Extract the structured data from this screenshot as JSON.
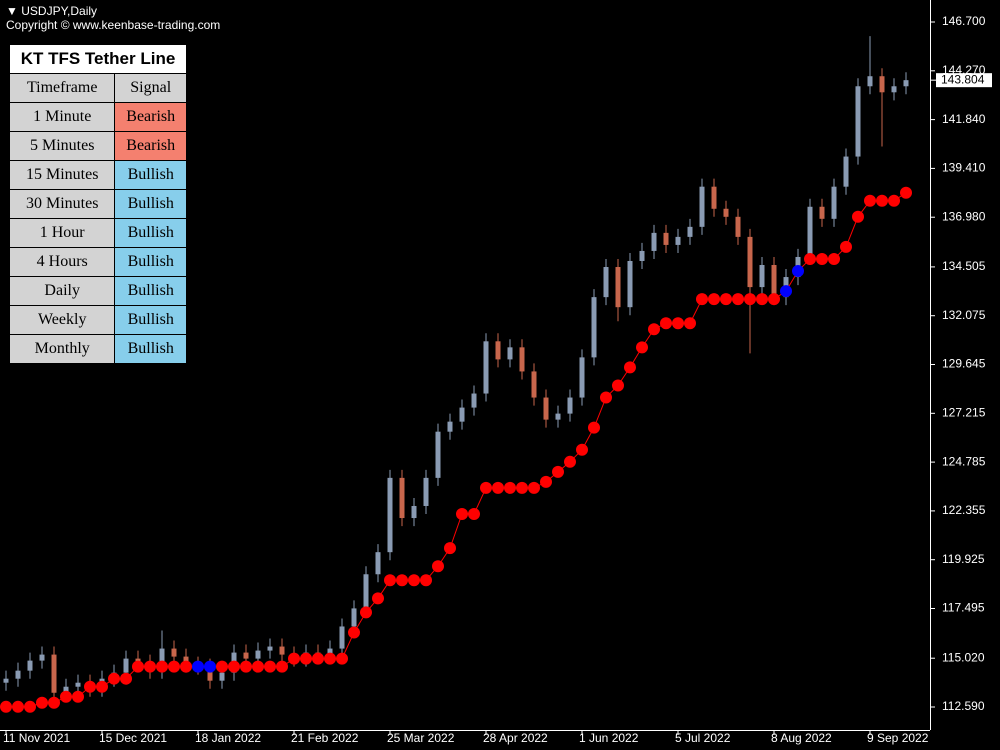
{
  "header": {
    "symbol": "USDJPY,Daily",
    "copyright": "Copyright © www.keenbase-trading.com"
  },
  "table": {
    "title": "KT TFS Tether Line",
    "columns": [
      "Timeframe",
      "Signal"
    ],
    "rows": [
      [
        "1 Minute",
        "Bearish"
      ],
      [
        "5 Minutes",
        "Bearish"
      ],
      [
        "15 Minutes",
        "Bullish"
      ],
      [
        "30 Minutes",
        "Bullish"
      ],
      [
        "1 Hour",
        "Bullish"
      ],
      [
        "4 Hours",
        "Bullish"
      ],
      [
        "Daily",
        "Bullish"
      ],
      [
        "Weekly",
        "Bullish"
      ],
      [
        "Monthly",
        "Bullish"
      ]
    ],
    "bearish_color": "#f4806f",
    "bullish_color": "#87ceeb"
  },
  "chart_data": {
    "type": "candlestick",
    "categories": [
      "11 Nov 2021",
      null,
      null,
      null,
      null,
      null,
      null,
      null,
      "15 Dec 2021",
      null,
      null,
      null,
      null,
      null,
      null,
      null,
      "18 Jan 2022",
      null,
      null,
      null,
      null,
      null,
      null,
      null,
      "21 Feb 2022",
      null,
      null,
      null,
      null,
      null,
      null,
      null,
      "25 Mar 2022",
      null,
      null,
      null,
      null,
      null,
      null,
      null,
      "28 Apr 2022",
      null,
      null,
      null,
      null,
      null,
      null,
      null,
      "1 Jun 2022",
      null,
      null,
      null,
      null,
      null,
      null,
      null,
      "5 Jul 2022",
      null,
      null,
      null,
      null,
      null,
      null,
      null,
      "8 Aug 2022",
      null,
      null,
      null,
      null,
      null,
      null,
      null,
      "9 Sep 2022",
      null,
      null,
      null
    ],
    "open": [
      113.8,
      114.0,
      114.4,
      114.9,
      115.2,
      113.3,
      113.6,
      113.8,
      113.5,
      114.0,
      114.3,
      115.0,
      114.8,
      114.4,
      115.5,
      115.1,
      114.7,
      114.6,
      113.9,
      114.3,
      115.3,
      115.0,
      115.4,
      115.6,
      115.2,
      115.0,
      115.3,
      115.2,
      115.5,
      116.6,
      117.5,
      119.2,
      120.3,
      124.0,
      122.0,
      122.6,
      124.0,
      126.3,
      126.8,
      127.5,
      128.2,
      130.8,
      129.9,
      130.5,
      129.3,
      128.0,
      126.9,
      127.2,
      128.0,
      130.0,
      133.0,
      134.5,
      132.5,
      134.8,
      135.3,
      136.2,
      135.6,
      136.0,
      136.5,
      138.5,
      137.4,
      137.0,
      136.0,
      133.5,
      134.6,
      133.0,
      134.0,
      135.0,
      137.5,
      136.9,
      138.5,
      140.0,
      143.5,
      144.0,
      143.2,
      143.5
    ],
    "high": [
      114.4,
      114.8,
      115.3,
      115.6,
      115.6,
      114.0,
      114.2,
      114.2,
      114.4,
      114.7,
      115.4,
      115.4,
      115.2,
      116.4,
      115.9,
      115.5,
      115.1,
      115.0,
      114.7,
      115.7,
      115.7,
      115.8,
      116.0,
      116.0,
      115.6,
      115.7,
      115.7,
      115.9,
      117.0,
      117.9,
      119.6,
      120.7,
      124.4,
      124.4,
      123.0,
      124.4,
      126.7,
      127.2,
      127.9,
      128.6,
      131.2,
      131.2,
      130.9,
      130.9,
      129.7,
      128.4,
      127.6,
      128.4,
      130.4,
      133.4,
      134.9,
      134.9,
      135.2,
      135.7,
      136.6,
      136.6,
      136.4,
      136.9,
      138.9,
      138.9,
      137.8,
      137.4,
      136.4,
      135.0,
      135.0,
      134.4,
      135.4,
      137.9,
      137.9,
      138.9,
      140.4,
      143.9,
      146.0,
      144.4,
      143.9,
      144.2
    ],
    "low": [
      113.4,
      113.6,
      114.0,
      114.5,
      112.9,
      112.9,
      113.2,
      113.1,
      113.1,
      113.6,
      113.9,
      114.4,
      114.0,
      114.0,
      114.7,
      114.3,
      114.2,
      113.5,
      113.5,
      113.9,
      114.6,
      114.6,
      115.0,
      114.8,
      114.6,
      114.6,
      114.8,
      114.8,
      115.1,
      116.2,
      117.1,
      118.8,
      119.9,
      121.6,
      121.6,
      122.2,
      123.6,
      125.9,
      126.4,
      127.1,
      127.8,
      129.5,
      129.5,
      128.9,
      127.6,
      126.5,
      126.5,
      126.8,
      127.6,
      129.6,
      132.6,
      131.8,
      132.1,
      134.4,
      134.9,
      135.2,
      135.2,
      135.6,
      136.1,
      137.0,
      136.6,
      135.6,
      130.2,
      133.1,
      132.6,
      132.6,
      133.6,
      134.6,
      136.5,
      136.5,
      138.1,
      139.6,
      143.1,
      140.5,
      142.8,
      143.1
    ],
    "close": [
      114.0,
      114.4,
      114.9,
      115.2,
      113.3,
      113.6,
      113.8,
      113.5,
      114.0,
      114.3,
      115.0,
      114.8,
      114.4,
      115.5,
      115.1,
      114.7,
      114.6,
      113.9,
      114.3,
      115.3,
      115.0,
      115.4,
      115.6,
      115.2,
      115.0,
      115.3,
      115.2,
      115.5,
      116.6,
      117.5,
      119.2,
      120.3,
      124.0,
      122.0,
      122.6,
      124.0,
      126.3,
      126.8,
      127.5,
      128.2,
      130.8,
      129.9,
      130.5,
      129.3,
      128.0,
      126.9,
      127.2,
      128.0,
      130.0,
      133.0,
      134.5,
      132.5,
      134.8,
      135.3,
      136.2,
      135.6,
      136.0,
      136.5,
      138.5,
      137.4,
      137.0,
      136.0,
      133.5,
      134.6,
      133.0,
      134.0,
      135.0,
      137.5,
      136.9,
      138.5,
      140.0,
      143.5,
      144.0,
      143.2,
      143.5,
      143.804
    ],
    "up_color": "#8a9bb3",
    "down_color": "#c8664c",
    "tether": {
      "values": [
        112.6,
        112.6,
        112.6,
        112.8,
        112.8,
        113.1,
        113.1,
        113.6,
        113.6,
        114.0,
        114.0,
        114.6,
        114.6,
        114.6,
        114.6,
        114.6,
        114.6,
        114.6,
        114.6,
        114.6,
        114.6,
        114.6,
        114.6,
        114.6,
        115.0,
        115.0,
        115.0,
        115.0,
        115.0,
        116.3,
        117.3,
        118.0,
        118.9,
        118.9,
        118.9,
        118.9,
        119.6,
        120.5,
        122.2,
        122.2,
        123.5,
        123.5,
        123.5,
        123.5,
        123.5,
        123.8,
        124.3,
        124.8,
        125.4,
        126.5,
        128.0,
        128.6,
        129.5,
        130.5,
        131.4,
        131.7,
        131.7,
        131.7,
        132.9,
        132.9,
        132.9,
        132.9,
        132.9,
        132.9,
        132.9,
        133.3,
        134.3,
        134.9,
        134.9,
        134.9,
        135.5,
        137.0,
        137.8,
        137.8,
        137.8,
        138.2
      ],
      "point_colors": [
        "#ff0000",
        "#ff0000",
        "#ff0000",
        "#ff0000",
        "#ff0000",
        "#ff0000",
        "#ff0000",
        "#ff0000",
        "#ff0000",
        "#ff0000",
        "#ff0000",
        "#ff0000",
        "#ff0000",
        "#ff0000",
        "#ff0000",
        "#ff0000",
        "#0000ff",
        "#0000ff",
        "#ff0000",
        "#ff0000",
        "#ff0000",
        "#ff0000",
        "#ff0000",
        "#ff0000",
        "#ff0000",
        "#ff0000",
        "#ff0000",
        "#ff0000",
        "#ff0000",
        "#ff0000",
        "#ff0000",
        "#ff0000",
        "#ff0000",
        "#ff0000",
        "#ff0000",
        "#ff0000",
        "#ff0000",
        "#ff0000",
        "#ff0000",
        "#ff0000",
        "#ff0000",
        "#ff0000",
        "#ff0000",
        "#ff0000",
        "#ff0000",
        "#ff0000",
        "#ff0000",
        "#ff0000",
        "#ff0000",
        "#ff0000",
        "#ff0000",
        "#ff0000",
        "#ff0000",
        "#ff0000",
        "#ff0000",
        "#ff0000",
        "#ff0000",
        "#ff0000",
        "#ff0000",
        "#ff0000",
        "#ff0000",
        "#ff0000",
        "#ff0000",
        "#ff0000",
        "#ff0000",
        "#0000ff",
        "#0000ff",
        "#ff0000",
        "#ff0000",
        "#ff0000",
        "#ff0000",
        "#ff0000",
        "#ff0000",
        "#ff0000",
        "#ff0000",
        "#ff0000"
      ]
    },
    "last_price": 143.804,
    "ylim": [
      111.445,
      147.796
    ],
    "yticks": [
      {
        "value": 146.7,
        "label": "146.700"
      },
      {
        "value": 144.27,
        "label": "144.270"
      },
      {
        "value": 141.84,
        "label": "141.840"
      },
      {
        "value": 139.41,
        "label": "139.410"
      },
      {
        "value": 136.98,
        "label": "136.980"
      },
      134.505,
      132.075,
      129.645,
      127.215,
      124.785,
      122.355,
      119.925,
      117.495,
      {
        "value": 115.02,
        "label": "115.020"
      },
      {
        "value": 112.59,
        "label": "112.590"
      }
    ],
    "grid": false
  }
}
